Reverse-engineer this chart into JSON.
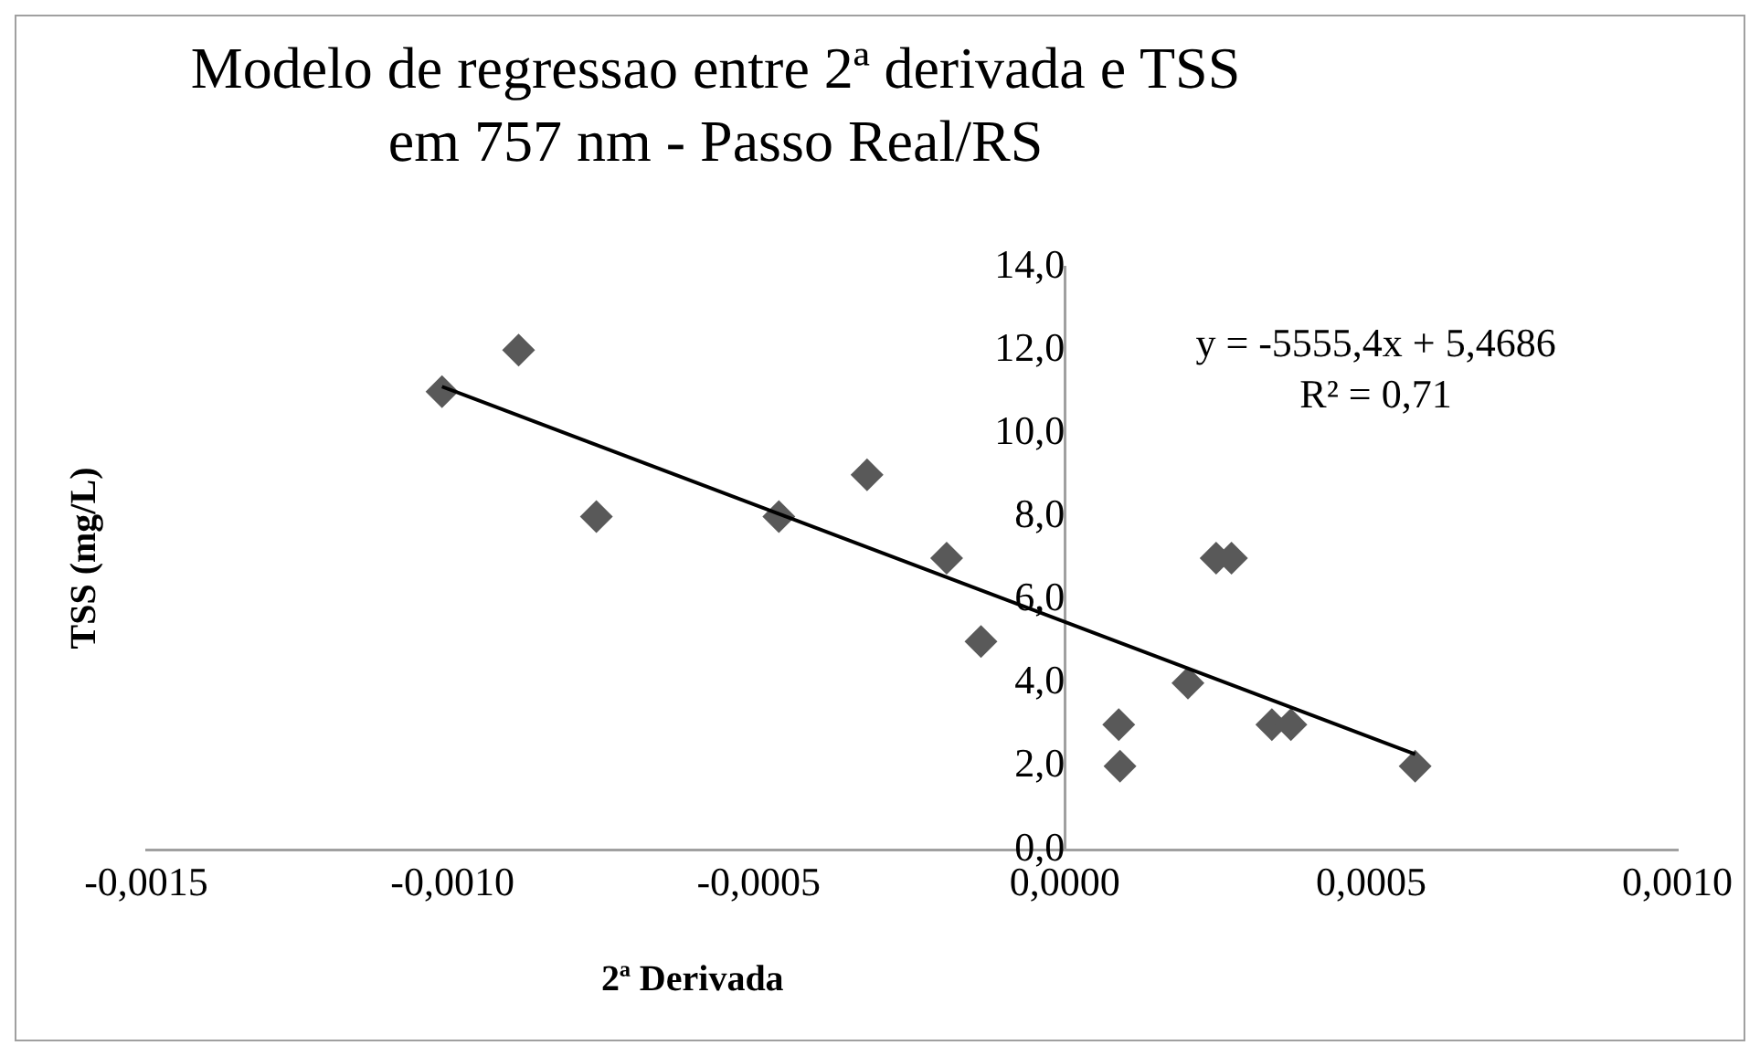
{
  "chart_data": {
    "type": "scatter",
    "title": "Modelo de regressao entre 2ª derivada e TSS em 757 nm - Passo Real/RS",
    "xlabel": "2ª Derivada",
    "ylabel": "TSS (mg/L)",
    "series": [
      {
        "type": "scatter",
        "color": "#595959",
        "marker": "diamond",
        "x": [
          -0.001017,
          -0.000892,
          -0.000765,
          -0.000467,
          -0.000323,
          -0.000193,
          -0.000137,
          8.8e-05,
          9e-05,
          0.000201,
          0.000247,
          0.000272,
          0.000338,
          0.000369,
          0.000572
        ],
        "values": [
          11,
          12,
          8,
          8,
          9,
          7,
          5,
          3,
          2,
          4,
          7,
          7,
          3,
          3,
          2
        ]
      },
      {
        "type": "line",
        "color": "#000000",
        "marker": "none",
        "line_style": "solid",
        "x": [
          -0.001017,
          0.000572
        ],
        "values": [
          11.12,
          2.29
        ]
      }
    ],
    "annotations": [
      "y = -5555,4x + 5,4686",
      "R² = 0,71"
    ],
    "xlim": [
      -0.0015,
      0.001
    ],
    "xticks": [
      {
        "value": -0.0015,
        "label": "-0,0015"
      },
      {
        "value": -0.001,
        "label": "-0,0010"
      },
      {
        "value": -0.0005,
        "label": "-0,0005"
      },
      {
        "value": 0,
        "label": "0,0000"
      },
      {
        "value": 0.0005,
        "label": "0,0005"
      },
      {
        "value": 0.001,
        "label": "0,0010"
      }
    ],
    "ylim": [
      0,
      14
    ],
    "yticks": [
      {
        "value": 0,
        "label": "0,0"
      },
      {
        "value": 2,
        "label": "2,0"
      },
      {
        "value": 4,
        "label": "4,0"
      },
      {
        "value": 6,
        "label": "6,0"
      },
      {
        "value": 8,
        "label": "8,0"
      },
      {
        "value": 10,
        "label": "10,0"
      },
      {
        "value": 12,
        "label": "12,0"
      },
      {
        "value": 14,
        "label": "14,0"
      }
    ],
    "grid": false,
    "legend": false
  }
}
